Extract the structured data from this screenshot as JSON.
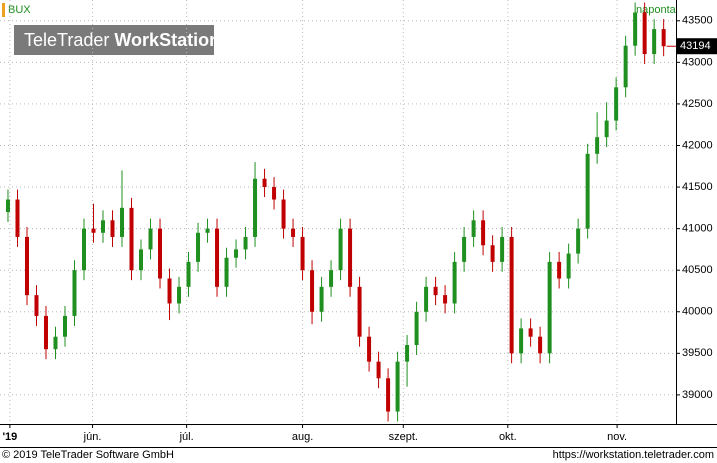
{
  "chart_data": {
    "type": "candlestick",
    "title": "BUX",
    "interval": "naponta",
    "watermark_brand": "TeleTrader",
    "watermark_product": "WorkStation",
    "footer_left": "© 2019 TeleTrader Software GmbH",
    "footer_right": "https://workstation.teletrader.com",
    "up_color": "#1f8f1f",
    "down_color": "#c00000",
    "grid": true,
    "ylim": [
      38650,
      43750
    ],
    "yticks": [
      39000,
      39500,
      40000,
      40500,
      41000,
      41500,
      42000,
      42500,
      43000,
      43500
    ],
    "xlim": [
      -0.84,
      70.3
    ],
    "xticks": [
      {
        "value": 0.2,
        "label": "'19"
      },
      {
        "value": 8.9,
        "label": "jún."
      },
      {
        "value": 18.8,
        "label": "júl."
      },
      {
        "value": 31,
        "label": "aug."
      },
      {
        "value": 41.6,
        "label": "szept."
      },
      {
        "value": 52.6,
        "label": "okt."
      },
      {
        "value": 64.1,
        "label": "nov."
      }
    ],
    "series": [
      {
        "name": "BUX",
        "open": [
          41200,
          41350,
          40900,
          40200,
          39950,
          39550,
          39700,
          39950,
          40500,
          41000,
          40950,
          41100,
          40900,
          41250,
          40500,
          40750,
          41000,
          40400,
          40100,
          40300,
          40600,
          40950,
          41000,
          40300,
          40650,
          40750,
          40900,
          41600,
          41500,
          41350,
          41000,
          40900,
          40500,
          40000,
          40300,
          40500,
          41000,
          40300,
          39700,
          39400,
          39200,
          38800,
          39400,
          39600,
          40000,
          40300,
          40200,
          40100,
          40600,
          40900,
          41100,
          40800,
          40600,
          40900,
          39500,
          39800,
          39700,
          39500,
          40600,
          40400,
          40700,
          41000,
          41900,
          42100,
          42300,
          42700,
          43200,
          43600,
          43100,
          43400
        ],
        "high": [
          41470,
          41470,
          41020,
          40320,
          40070,
          39820,
          40070,
          40620,
          41120,
          41300,
          41220,
          41220,
          41700,
          41370,
          40870,
          41120,
          41120,
          40520,
          40420,
          40720,
          41070,
          41120,
          41120,
          40770,
          40870,
          41020,
          41800,
          41720,
          41620,
          41470,
          41120,
          41020,
          40620,
          40420,
          40620,
          41120,
          41120,
          40420,
          39820,
          39520,
          39320,
          39520,
          39720,
          40120,
          40420,
          40420,
          40320,
          40720,
          41020,
          41220,
          41220,
          40920,
          41020,
          41020,
          39920,
          39920,
          39820,
          40720,
          40720,
          40820,
          41120,
          42020,
          42400,
          42520,
          42820,
          43320,
          43720,
          43720,
          43520,
          43520
        ],
        "low": [
          41080,
          40780,
          40080,
          39830,
          39430,
          39430,
          39580,
          39830,
          40380,
          40830,
          40830,
          40780,
          40780,
          40380,
          40380,
          40630,
          40280,
          39900,
          39980,
          40180,
          40480,
          40830,
          40180,
          40180,
          40530,
          40630,
          40780,
          41380,
          41230,
          40880,
          40780,
          40380,
          39850,
          39880,
          40180,
          40380,
          40180,
          39580,
          39280,
          39080,
          38680,
          38680,
          39100,
          39480,
          39880,
          40080,
          39980,
          39980,
          40480,
          40780,
          40680,
          40480,
          40480,
          39380,
          39380,
          39580,
          39380,
          39380,
          40280,
          40280,
          40580,
          40880,
          41780,
          41980,
          42180,
          42580,
          43080,
          42980,
          42980,
          43074
        ],
        "close": [
          41350,
          40900,
          40200,
          39950,
          39550,
          39700,
          39950,
          40500,
          41000,
          40950,
          41100,
          40900,
          41250,
          40500,
          40750,
          41000,
          40400,
          40100,
          40300,
          40600,
          40950,
          41000,
          40300,
          40650,
          40750,
          40900,
          41600,
          41500,
          41350,
          41000,
          40900,
          40500,
          40000,
          40300,
          40500,
          41000,
          40300,
          39700,
          39400,
          39200,
          38800,
          39400,
          39600,
          40000,
          40300,
          40200,
          40100,
          40600,
          40900,
          41100,
          40800,
          40600,
          40900,
          39500,
          39800,
          39700,
          39500,
          40600,
          40400,
          40700,
          41000,
          41900,
          42100,
          42300,
          42700,
          43200,
          43600,
          43100,
          43400,
          43194
        ]
      }
    ]
  }
}
